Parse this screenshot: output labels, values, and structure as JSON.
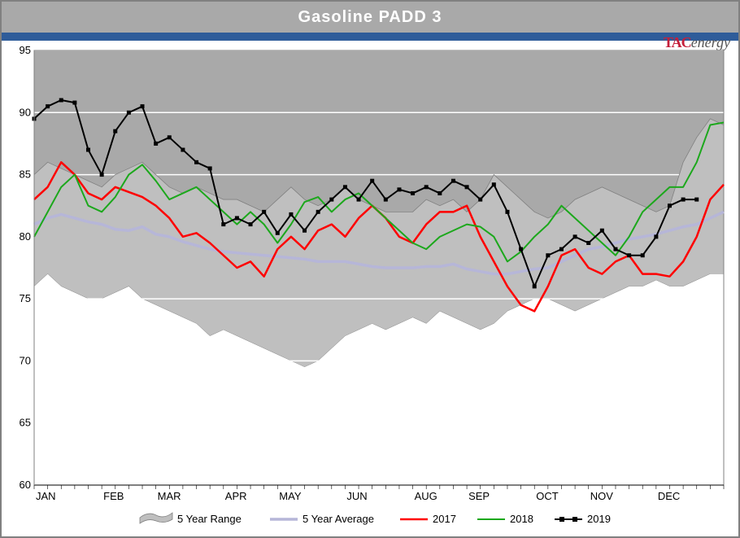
{
  "title": "Gasoline PADD 3",
  "brand": {
    "tac": "TAC",
    "energy": "energy"
  },
  "chart": {
    "type": "line",
    "background_color": "#a9a9a9",
    "plot_bg_lower": "#ffffff",
    "grid_color": "#ffffff",
    "frame_color": "#808080",
    "title_bg": "#a9a9a9",
    "bluebar_color": "#2e5c9a",
    "ylim": [
      60,
      95
    ],
    "ytick_step": 5,
    "yticks": [
      60,
      65,
      70,
      75,
      80,
      85,
      90,
      95
    ],
    "x_months": [
      "JAN",
      "FEB",
      "MAR",
      "APR",
      "MAY",
      "JUN",
      "AUG",
      "SEP",
      "OCT",
      "NOV",
      "DEC"
    ],
    "x_month_positions": [
      0,
      5,
      9,
      14,
      18,
      23,
      28,
      32,
      37,
      41,
      46
    ],
    "n_points": 52,
    "legend": {
      "items": [
        {
          "key": "range",
          "label": "5 Year Range",
          "type": "area",
          "fill": "#bfbfbf",
          "edge": "#808080"
        },
        {
          "key": "avg",
          "label": "5 Year Average",
          "type": "line",
          "color": "#b6b6d8",
          "width": 3
        },
        {
          "key": "y2017",
          "label": "2017",
          "type": "line",
          "color": "#ff0000",
          "width": 2.5
        },
        {
          "key": "y2018",
          "label": "2018",
          "type": "line",
          "color": "#1ca81c",
          "width": 2
        },
        {
          "key": "y2019",
          "label": "2019",
          "type": "line-marker",
          "color": "#000000",
          "width": 2,
          "marker": "square",
          "marker_size": 5
        }
      ],
      "fontsize": 13
    },
    "series": {
      "range_high": [
        85,
        86,
        85.5,
        85,
        84.5,
        84,
        85,
        85.5,
        86,
        85,
        84,
        83.5,
        84,
        83.5,
        83,
        83,
        82.5,
        82,
        83,
        84,
        83,
        82.5,
        83,
        84,
        83,
        82.5,
        82,
        82,
        82,
        83,
        82.5,
        83,
        82,
        83,
        85,
        84,
        83,
        82,
        81.5,
        82,
        83,
        83.5,
        84,
        83.5,
        83,
        82.5,
        82,
        82.5,
        86,
        88,
        89.5,
        89
      ],
      "range_low": [
        76,
        77,
        76,
        75.5,
        75,
        75,
        75.5,
        76,
        75,
        74.5,
        74,
        73.5,
        73,
        72,
        72.5,
        72,
        71.5,
        71,
        70.5,
        70,
        69.5,
        70,
        71,
        72,
        72.5,
        73,
        72.5,
        73,
        73.5,
        73,
        74,
        73.5,
        73,
        72.5,
        73,
        74,
        74.5,
        75,
        75,
        74.5,
        74,
        74.5,
        75,
        75.5,
        76,
        76,
        76.5,
        76,
        76,
        76.5,
        77,
        77
      ],
      "avg": [
        81,
        81.5,
        81.8,
        81.5,
        81.2,
        81,
        80.6,
        80.5,
        80.8,
        80.2,
        80,
        79.6,
        79.3,
        79,
        78.8,
        78.7,
        78.6,
        78.5,
        78.4,
        78.3,
        78.2,
        78,
        78,
        78,
        77.8,
        77.6,
        77.5,
        77.5,
        77.5,
        77.6,
        77.6,
        77.8,
        77.4,
        77.2,
        77,
        77,
        77.2,
        77.4,
        77.5,
        78,
        78.5,
        79,
        79.2,
        79.5,
        79.8,
        80,
        80.2,
        80.5,
        80.8,
        81,
        81.5,
        82
      ],
      "y2017": [
        83,
        84,
        86,
        85,
        83.5,
        83,
        84,
        83.6,
        83.2,
        82.5,
        81.5,
        80,
        80.3,
        79.5,
        78.5,
        77.5,
        78,
        76.8,
        79,
        80,
        79,
        80.5,
        81,
        80,
        81.5,
        82.5,
        81.5,
        80,
        79.5,
        81,
        82,
        82,
        82.5,
        80,
        78,
        76,
        74.5,
        74,
        76,
        78.5,
        79,
        77.5,
        77,
        78,
        78.5,
        77,
        77,
        76.8,
        78,
        80,
        83,
        84.2
      ],
      "y2018": [
        80,
        82,
        84,
        85,
        82.5,
        82,
        83.2,
        85,
        85.8,
        84.5,
        83,
        83.5,
        84,
        83,
        82,
        81,
        82,
        81,
        79.5,
        81,
        82.8,
        83.2,
        82,
        83,
        83.5,
        82.5,
        81.5,
        80.5,
        79.5,
        79,
        80,
        80.5,
        81,
        80.8,
        80,
        78,
        78.8,
        80,
        81,
        82.5,
        81.5,
        80.5,
        79.5,
        78.5,
        80,
        82,
        83,
        84,
        84,
        86,
        89,
        89.2
      ],
      "y2019": [
        89.5,
        90.5,
        91,
        90.8,
        87,
        85,
        88.5,
        90,
        90.5,
        87.5,
        88,
        87,
        86,
        85.5,
        81,
        81.5,
        81,
        82,
        80.3,
        81.8,
        80.5,
        82,
        83,
        84,
        83,
        84.5,
        83,
        83.8,
        83.5,
        84,
        83.5,
        84.5,
        84,
        83,
        84.2,
        82,
        79,
        76,
        78.5,
        79,
        80,
        79.5,
        80.5,
        79,
        78.5,
        78.5,
        80,
        82.5,
        83,
        83
      ]
    }
  }
}
